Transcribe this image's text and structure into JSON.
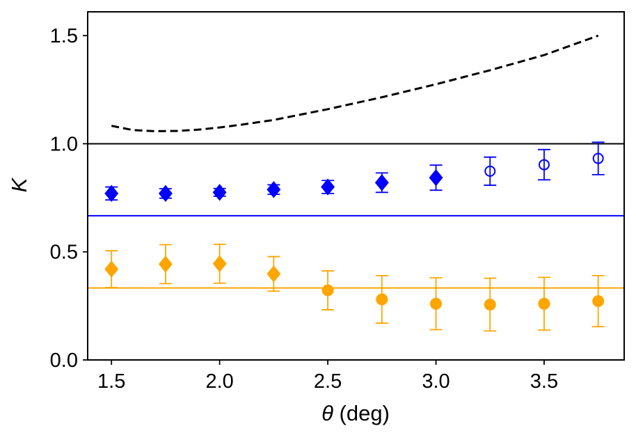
{
  "chart_data": {
    "type": "scatter",
    "title": "",
    "xlabel_symbol": "θ",
    "xlabel_rest": " (deg)",
    "ylabel": "K",
    "xlim": [
      1.39,
      3.87
    ],
    "ylim": [
      0.0,
      1.61
    ],
    "xticks": [
      1.5,
      2.0,
      2.5,
      3.0,
      3.5
    ],
    "xtick_labels": [
      "1.5",
      "2.0",
      "2.5",
      "3.0",
      "3.5"
    ],
    "yticks": [
      0.0,
      0.5,
      1.0,
      1.5
    ],
    "ytick_labels": [
      "0.0",
      "0.5",
      "1.0",
      "1.5"
    ],
    "grid": false,
    "reference_lines": [
      {
        "name": "black-reference-line",
        "y": 1.0,
        "color": "#000000"
      },
      {
        "name": "blue-reference-line",
        "y": 0.667,
        "color": "#0000ff"
      },
      {
        "name": "orange-reference-line",
        "y": 0.333,
        "color": "#ffa500"
      }
    ],
    "curve": {
      "name": "dashed-curve",
      "color": "#000000",
      "x": [
        1.5,
        1.6,
        1.7,
        1.8,
        1.9,
        2.0,
        2.1,
        2.25,
        2.5,
        2.75,
        3.0,
        3.25,
        3.5,
        3.75
      ],
      "y": [
        1.083,
        1.063,
        1.058,
        1.059,
        1.065,
        1.075,
        1.088,
        1.11,
        1.16,
        1.215,
        1.275,
        1.34,
        1.41,
        1.5
      ]
    },
    "series": [
      {
        "name": "blue-filled-diamonds",
        "color": "#0000ff",
        "marker": "diamond",
        "filled": true,
        "x": [
          1.5,
          1.75,
          2.0,
          2.25,
          2.5,
          2.75,
          3.0
        ],
        "y": [
          0.77,
          0.77,
          0.775,
          0.788,
          0.8,
          0.82,
          0.843
        ],
        "err": [
          0.03,
          0.022,
          0.018,
          0.022,
          0.03,
          0.045,
          0.058
        ]
      },
      {
        "name": "blue-open-circles",
        "color": "#0000ff",
        "marker": "circle",
        "filled": false,
        "x": [
          3.25,
          3.5,
          3.75
        ],
        "y": [
          0.873,
          0.903,
          0.932
        ],
        "err": [
          0.065,
          0.07,
          0.075
        ]
      },
      {
        "name": "orange-filled-diamonds",
        "color": "#ffa500",
        "marker": "diamond",
        "filled": true,
        "x": [
          1.5,
          1.75,
          2.0,
          2.25
        ],
        "y": [
          0.42,
          0.443,
          0.445,
          0.398
        ],
        "err": [
          0.085,
          0.09,
          0.09,
          0.08
        ]
      },
      {
        "name": "orange-filled-circles",
        "color": "#ffa500",
        "marker": "circle",
        "filled": true,
        "x": [
          2.5,
          2.75,
          3.0,
          3.25,
          3.5,
          3.75
        ],
        "y": [
          0.322,
          0.28,
          0.26,
          0.256,
          0.26,
          0.272
        ],
        "err": [
          0.09,
          0.11,
          0.12,
          0.122,
          0.122,
          0.118
        ]
      }
    ]
  }
}
